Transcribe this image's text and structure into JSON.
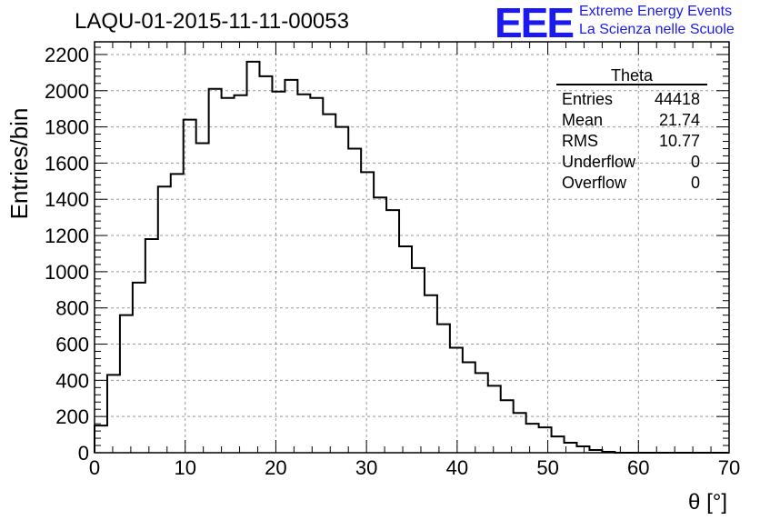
{
  "title": "LAQU-01-2015-11-11-00053",
  "logo": {
    "mark": "EEE",
    "line1": "Extreme Energy Events",
    "line2": "La Scienza nelle Scuole",
    "color": "#1a1af0"
  },
  "stats": {
    "name": "Theta",
    "rows": [
      {
        "label": "Entries",
        "value": "44418"
      },
      {
        "label": "Mean",
        "value": "21.74"
      },
      {
        "label": "RMS",
        "value": "10.77"
      },
      {
        "label": "Underflow",
        "value": "0"
      },
      {
        "label": "Overflow",
        "value": "0"
      }
    ]
  },
  "chart_data": {
    "type": "histogram",
    "title": "LAQU-01-2015-11-11-00053",
    "xlabel": "θ [°]",
    "ylabel": "Entries/bin",
    "xlim": [
      0,
      70
    ],
    "ylim": [
      0,
      2270
    ],
    "bin_width": 1.4,
    "x_ticks": [
      0,
      10,
      20,
      30,
      40,
      50,
      60,
      70
    ],
    "y_ticks": [
      0,
      200,
      400,
      600,
      800,
      1000,
      1200,
      1400,
      1600,
      1800,
      2000,
      2200
    ],
    "grid": true,
    "line_color": "#000000",
    "values": [
      150,
      430,
      760,
      940,
      1180,
      1470,
      1540,
      1840,
      1710,
      2010,
      1960,
      1975,
      2160,
      2080,
      1995,
      2060,
      1980,
      1960,
      1870,
      1800,
      1680,
      1550,
      1410,
      1340,
      1140,
      1020,
      870,
      710,
      580,
      500,
      440,
      370,
      290,
      220,
      160,
      140,
      90,
      55,
      35,
      15,
      5,
      0,
      0,
      0,
      0,
      0,
      0,
      0,
      0,
      0
    ]
  }
}
